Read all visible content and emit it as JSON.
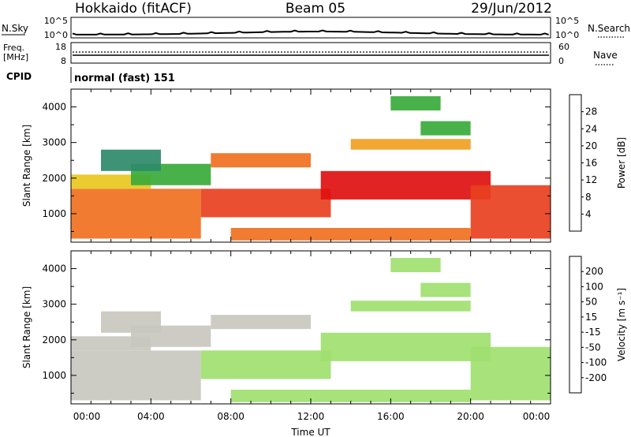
{
  "header": {
    "station": "Hokkaido (fitACF)",
    "beam": "Beam 05",
    "date": "29/Jun/2012"
  },
  "noise_panel": {
    "left_label": "N.Sky",
    "right_label": "N.Search",
    "ticks_left": [
      "10^5",
      "10^0"
    ],
    "ticks_right": [
      "10^5",
      "10^0"
    ]
  },
  "freq_panel": {
    "left_label_1": "Freq.",
    "left_label_2": "[MHz]",
    "ticks_left": [
      "18",
      "8"
    ],
    "right_label": "Nave",
    "ticks_right": [
      "60",
      "0"
    ]
  },
  "cpid": {
    "label": "CPID",
    "mode": "normal (fast) 151"
  },
  "colors": {
    "power_scale": [
      "#1010e0",
      "#1a3a9a",
      "#2e8a6a",
      "#3aaa3a",
      "#e8c820",
      "#f0a020",
      "#f07020",
      "#e84020",
      "#e01010"
    ],
    "velocity_scale": [
      "#e01010",
      "#f03010",
      "#f07000",
      "#f0a020",
      "#c8c8c0",
      "#a0e070",
      "#40c040",
      "#2e7a5a",
      "#2040c0",
      "#1010a0"
    ]
  },
  "chart_data": [
    {
      "type": "heatmap",
      "title": "Power",
      "xlabel": "Time UT",
      "ylabel": "Slant Range [km]",
      "x_ticks": [
        "00:00",
        "04:00",
        "08:00",
        "12:00",
        "16:00",
        "20:00",
        "00:00"
      ],
      "y_ticks": [
        "1000",
        "2000",
        "3000",
        "4000"
      ],
      "ylim": [
        200,
        4500
      ],
      "colorbar": {
        "label": "Power [dB]",
        "ticks": [
          "28",
          "24",
          "20",
          "16",
          "12",
          "8",
          "4"
        ],
        "range": [
          0,
          32
        ]
      },
      "regions": [
        {
          "t0": 0.0,
          "t1": 6.5,
          "r0": 300,
          "r1": 1700,
          "v": 22
        },
        {
          "t0": 0.0,
          "t1": 4.0,
          "r0": 1700,
          "r1": 2100,
          "v": 16
        },
        {
          "t0": 3.0,
          "t1": 7.0,
          "r0": 1800,
          "r1": 2400,
          "v": 14
        },
        {
          "t0": 6.5,
          "t1": 13.0,
          "r0": 900,
          "r1": 1700,
          "v": 27
        },
        {
          "t0": 12.5,
          "t1": 21.0,
          "r0": 1400,
          "r1": 2200,
          "v": 29
        },
        {
          "t0": 7.0,
          "t1": 12.0,
          "r0": 2300,
          "r1": 2700,
          "v": 22
        },
        {
          "t0": 14.0,
          "t1": 20.0,
          "r0": 2800,
          "r1": 3100,
          "v": 21
        },
        {
          "t0": 20.0,
          "t1": 24.0,
          "r0": 300,
          "r1": 1800,
          "v": 26
        },
        {
          "t0": 8.0,
          "t1": 20.0,
          "r0": 250,
          "r1": 600,
          "v": 23
        },
        {
          "t0": 1.5,
          "t1": 4.5,
          "r0": 2200,
          "r1": 2800,
          "v": 8
        },
        {
          "t0": 17.5,
          "t1": 20.0,
          "r0": 3200,
          "r1": 3600,
          "v": 12
        },
        {
          "t0": 16.0,
          "t1": 18.5,
          "r0": 3900,
          "r1": 4300,
          "v": 14
        }
      ]
    },
    {
      "type": "heatmap",
      "title": "Velocity",
      "xlabel": "Time UT",
      "ylabel": "Slant Range [km]",
      "x_ticks": [
        "00:00",
        "04:00",
        "08:00",
        "12:00",
        "16:00",
        "20:00",
        "00:00"
      ],
      "y_ticks": [
        "1000",
        "2000",
        "3000",
        "4000"
      ],
      "ylim": [
        200,
        4500
      ],
      "colorbar": {
        "label": "Velocity [m s⁻¹]",
        "ticks": [
          "200",
          "100",
          "50",
          "15",
          "-15",
          "-50",
          "-100",
          "-200"
        ],
        "range": [
          -250,
          250
        ]
      },
      "regions": [
        {
          "t0": 0.0,
          "t1": 6.5,
          "r0": 300,
          "r1": 1700,
          "v": -40
        },
        {
          "t0": 0.0,
          "t1": 4.0,
          "r0": 1700,
          "r1": 2100,
          "v": -30
        },
        {
          "t0": 3.0,
          "t1": 7.0,
          "r0": 1800,
          "r1": 2400,
          "v": -45
        },
        {
          "t0": 6.5,
          "t1": 13.0,
          "r0": 900,
          "r1": 1700,
          "v": 0
        },
        {
          "t0": 12.5,
          "t1": 21.0,
          "r0": 1400,
          "r1": 2200,
          "v": 0
        },
        {
          "t0": 7.0,
          "t1": 12.0,
          "r0": 2300,
          "r1": 2700,
          "v": -35
        },
        {
          "t0": 14.0,
          "t1": 20.0,
          "r0": 2800,
          "r1": 3100,
          "v": 0
        },
        {
          "t0": 20.0,
          "t1": 24.0,
          "r0": 300,
          "r1": 1800,
          "v": 0
        },
        {
          "t0": 8.0,
          "t1": 20.0,
          "r0": 250,
          "r1": 600,
          "v": 40
        },
        {
          "t0": 1.5,
          "t1": 4.5,
          "r0": 2200,
          "r1": 2800,
          "v": -40
        },
        {
          "t0": 17.5,
          "t1": 20.0,
          "r0": 3200,
          "r1": 3600,
          "v": 40
        },
        {
          "t0": 16.0,
          "t1": 18.5,
          "r0": 3900,
          "r1": 4300,
          "v": 30
        }
      ]
    }
  ]
}
